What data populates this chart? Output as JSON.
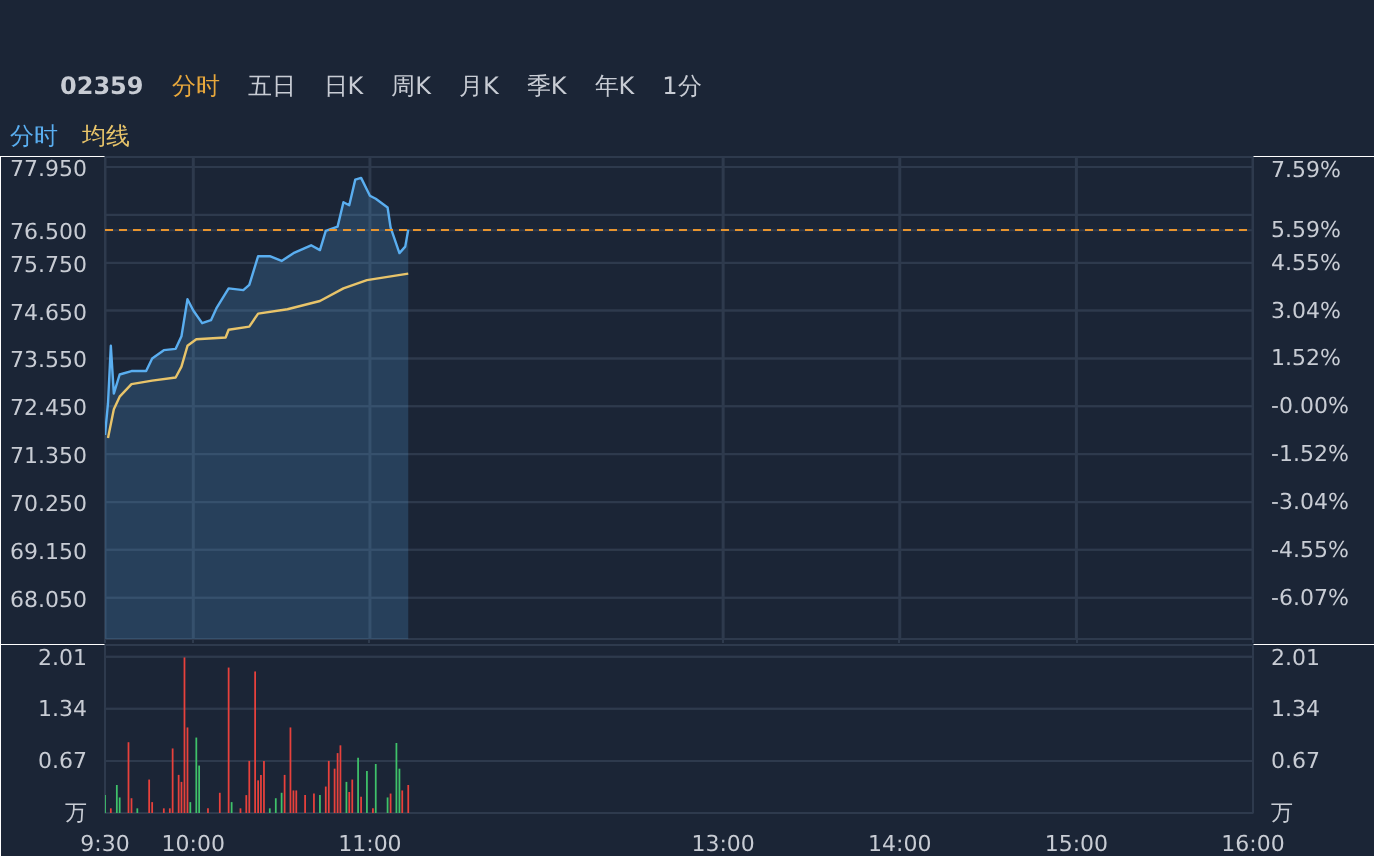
{
  "chart_data": [
    {
      "type": "line",
      "annotations": [
        "02359",
        "分时",
        "五日",
        "日K",
        "周K",
        "月K",
        "季K",
        "年K",
        "1分"
      ],
      "legend": "top left",
      "grid": true,
      "tick_labels": "y",
      "xlim": [
        9.5,
        16
      ],
      "xticks": [
        9.5,
        10,
        11,
        13,
        14,
        15,
        16
      ],
      "ylim": [
        67.1,
        78.18
      ],
      "yticks": [
        {
          "value": 77.95,
          "label": "77.950"
        },
        {
          "value": 76.85,
          "label": null
        },
        {
          "value": 75.75,
          "label": "75.750"
        },
        {
          "value": 74.65,
          "label": "74.650"
        },
        {
          "value": 73.55,
          "label": "73.550"
        },
        {
          "value": 72.45,
          "label": "72.450"
        },
        {
          "value": 71.35,
          "label": "71.350"
        },
        {
          "value": 70.25,
          "label": "70.250"
        },
        {
          "value": 69.15,
          "label": "69.150"
        },
        {
          "value": 68.05,
          "label": "68.050"
        }
      ],
      "y2lim": [
        -7.38,
        7.91
      ],
      "y2ticks": [
        {
          "value": 7.59,
          "label": "7.59%"
        },
        {
          "value": 6.07,
          "label": null
        },
        {
          "value": 5.59,
          "label": "5.59%"
        },
        {
          "value": 4.55,
          "label": "4.55%"
        },
        {
          "value": 3.04,
          "label": "3.04%"
        },
        {
          "value": 1.52,
          "label": "1.52%"
        },
        {
          "value": 0,
          "label": "-0.00%"
        },
        {
          "value": -1.52,
          "label": "-1.52%"
        },
        {
          "value": -3.04,
          "label": "-3.04%"
        },
        {
          "value": -4.55,
          "label": "-4.55%"
        },
        {
          "value": -6.07,
          "label": "-6.07%"
        }
      ],
      "ref_lines": [
        {
          "axis": "y",
          "value": 76.5,
          "label": "76.500",
          "color": "#e8952f",
          "line_style": "dashed"
        }
      ],
      "series": [
        {
          "name": "分时",
          "type": "area",
          "color": "#5aaef0",
          "x": [
            9.5,
            9.517,
            9.533,
            9.55,
            9.583,
            9.65,
            9.733,
            9.767,
            9.833,
            9.9,
            9.933,
            9.967,
            10.0,
            10.05,
            10.1,
            10.133,
            10.2,
            10.283,
            10.317,
            10.367,
            10.433,
            10.5,
            10.567,
            10.667,
            10.717,
            10.75,
            10.817,
            10.85,
            10.883,
            10.917,
            10.95,
            11.0,
            11.033,
            11.1,
            11.117,
            11.167,
            11.2,
            11.217
          ],
          "values": [
            71.79,
            72.52,
            73.84,
            72.74,
            73.18,
            73.26,
            73.26,
            73.55,
            73.74,
            73.77,
            74.06,
            74.91,
            74.65,
            74.36,
            74.43,
            74.72,
            75.16,
            75.12,
            75.24,
            75.9,
            75.9,
            75.79,
            75.97,
            76.15,
            76.04,
            76.48,
            76.58,
            77.14,
            77.07,
            77.66,
            77.7,
            77.29,
            77.22,
            77.02,
            76.56,
            75.97,
            76.12,
            76.51
          ]
        },
        {
          "name": "均线",
          "type": "line",
          "color": "#e8c46a",
          "x": [
            9.517,
            9.55,
            9.583,
            9.65,
            9.767,
            9.9,
            9.933,
            9.967,
            10.017,
            10.183,
            10.2,
            10.317,
            10.367,
            10.533,
            10.717,
            10.85,
            10.983,
            11.217
          ],
          "values": [
            71.72,
            72.38,
            72.67,
            72.96,
            73.04,
            73.11,
            73.36,
            73.84,
            73.99,
            74.03,
            74.21,
            74.28,
            74.58,
            74.68,
            74.87,
            75.16,
            75.35,
            75.5
          ]
        }
      ]
    },
    {
      "type": "bar",
      "grid": "y",
      "xlim": [
        9.5,
        16
      ],
      "xticks": [
        {
          "value": 9.5,
          "label": "9:30"
        },
        {
          "value": 10,
          "label": "10:00"
        },
        {
          "value": 11,
          "label": "11:00"
        },
        {
          "value": 13,
          "label": "13:00"
        },
        {
          "value": 14,
          "label": "14:00"
        },
        {
          "value": 15,
          "label": "15:00"
        },
        {
          "value": 16,
          "label": "16:00"
        }
      ],
      "ylim": [
        0,
        2.16
      ],
      "yticks": [
        {
          "value": 0,
          "label": "万"
        },
        0.67,
        1.34,
        2.01
      ],
      "y2lim": [
        0,
        2.16
      ],
      "y2ticks": [
        {
          "value": 0,
          "label": "万"
        },
        0.67,
        1.34,
        2.01
      ],
      "x": [
        9.5,
        9.533,
        9.567,
        9.583,
        9.633,
        9.65,
        9.683,
        9.75,
        9.767,
        9.833,
        9.867,
        9.883,
        9.917,
        9.933,
        9.95,
        9.967,
        9.983,
        10.017,
        10.033,
        10.083,
        10.15,
        10.2,
        10.217,
        10.267,
        10.3,
        10.317,
        10.35,
        10.367,
        10.383,
        10.4,
        10.433,
        10.467,
        10.5,
        10.517,
        10.55,
        10.567,
        10.583,
        10.633,
        10.683,
        10.717,
        10.75,
        10.767,
        10.8,
        10.817,
        10.833,
        10.867,
        10.883,
        10.9,
        10.933,
        10.95,
        10.983,
        11.017,
        11.033,
        11.1,
        11.117,
        11.15,
        11.167,
        11.183,
        11.217
      ],
      "values": [
        0.23,
        0.06,
        0.36,
        0.2,
        0.91,
        0.19,
        0.06,
        0.43,
        0.14,
        0.06,
        0.06,
        0.83,
        0.49,
        0.4,
        2.0,
        1.1,
        0.14,
        0.97,
        0.61,
        0.06,
        0.26,
        1.87,
        0.14,
        0.06,
        0.23,
        0.67,
        1.82,
        0.42,
        0.49,
        0.67,
        0.06,
        0.19,
        0.26,
        0.49,
        1.1,
        0.29,
        0.29,
        0.23,
        0.25,
        0.23,
        0.34,
        0.67,
        0.57,
        0.77,
        0.87,
        0.4,
        0.27,
        0.43,
        0.71,
        0.21,
        0.54,
        0.06,
        0.63,
        0.2,
        0.25,
        0.9,
        0.57,
        0.29,
        0.36
      ],
      "colors": [
        "#3fc26a",
        "#e8413c",
        "#3fc26a",
        "#3fc26a",
        "#e8413c",
        "#e8413c",
        "#3fc26a",
        "#e8413c",
        "#e8413c",
        "#e8413c",
        "#e8413c",
        "#e8413c",
        "#e8413c",
        "#e8413c",
        "#e8413c",
        "#e8413c",
        "#3fc26a",
        "#3fc26a",
        "#3fc26a",
        "#e8413c",
        "#e8413c",
        "#e8413c",
        "#3fc26a",
        "#e8413c",
        "#e8413c",
        "#e8413c",
        "#e8413c",
        "#e8413c",
        "#e8413c",
        "#e8413c",
        "#3fc26a",
        "#3fc26a",
        "#3fc26a",
        "#e8413c",
        "#e8413c",
        "#e8413c",
        "#e8413c",
        "#e8413c",
        "#e8413c",
        "#3fc26a",
        "#e8413c",
        "#e8413c",
        "#e8413c",
        "#e8413c",
        "#e8413c",
        "#3fc26a",
        "#e8413c",
        "#e8413c",
        "#3fc26a",
        "#e8413c",
        "#3fc26a",
        "#e8413c",
        "#3fc26a",
        "#3fc26a",
        "#e8413c",
        "#3fc26a",
        "#3fc26a",
        "#e8413c",
        "#e8413c"
      ]
    }
  ]
}
